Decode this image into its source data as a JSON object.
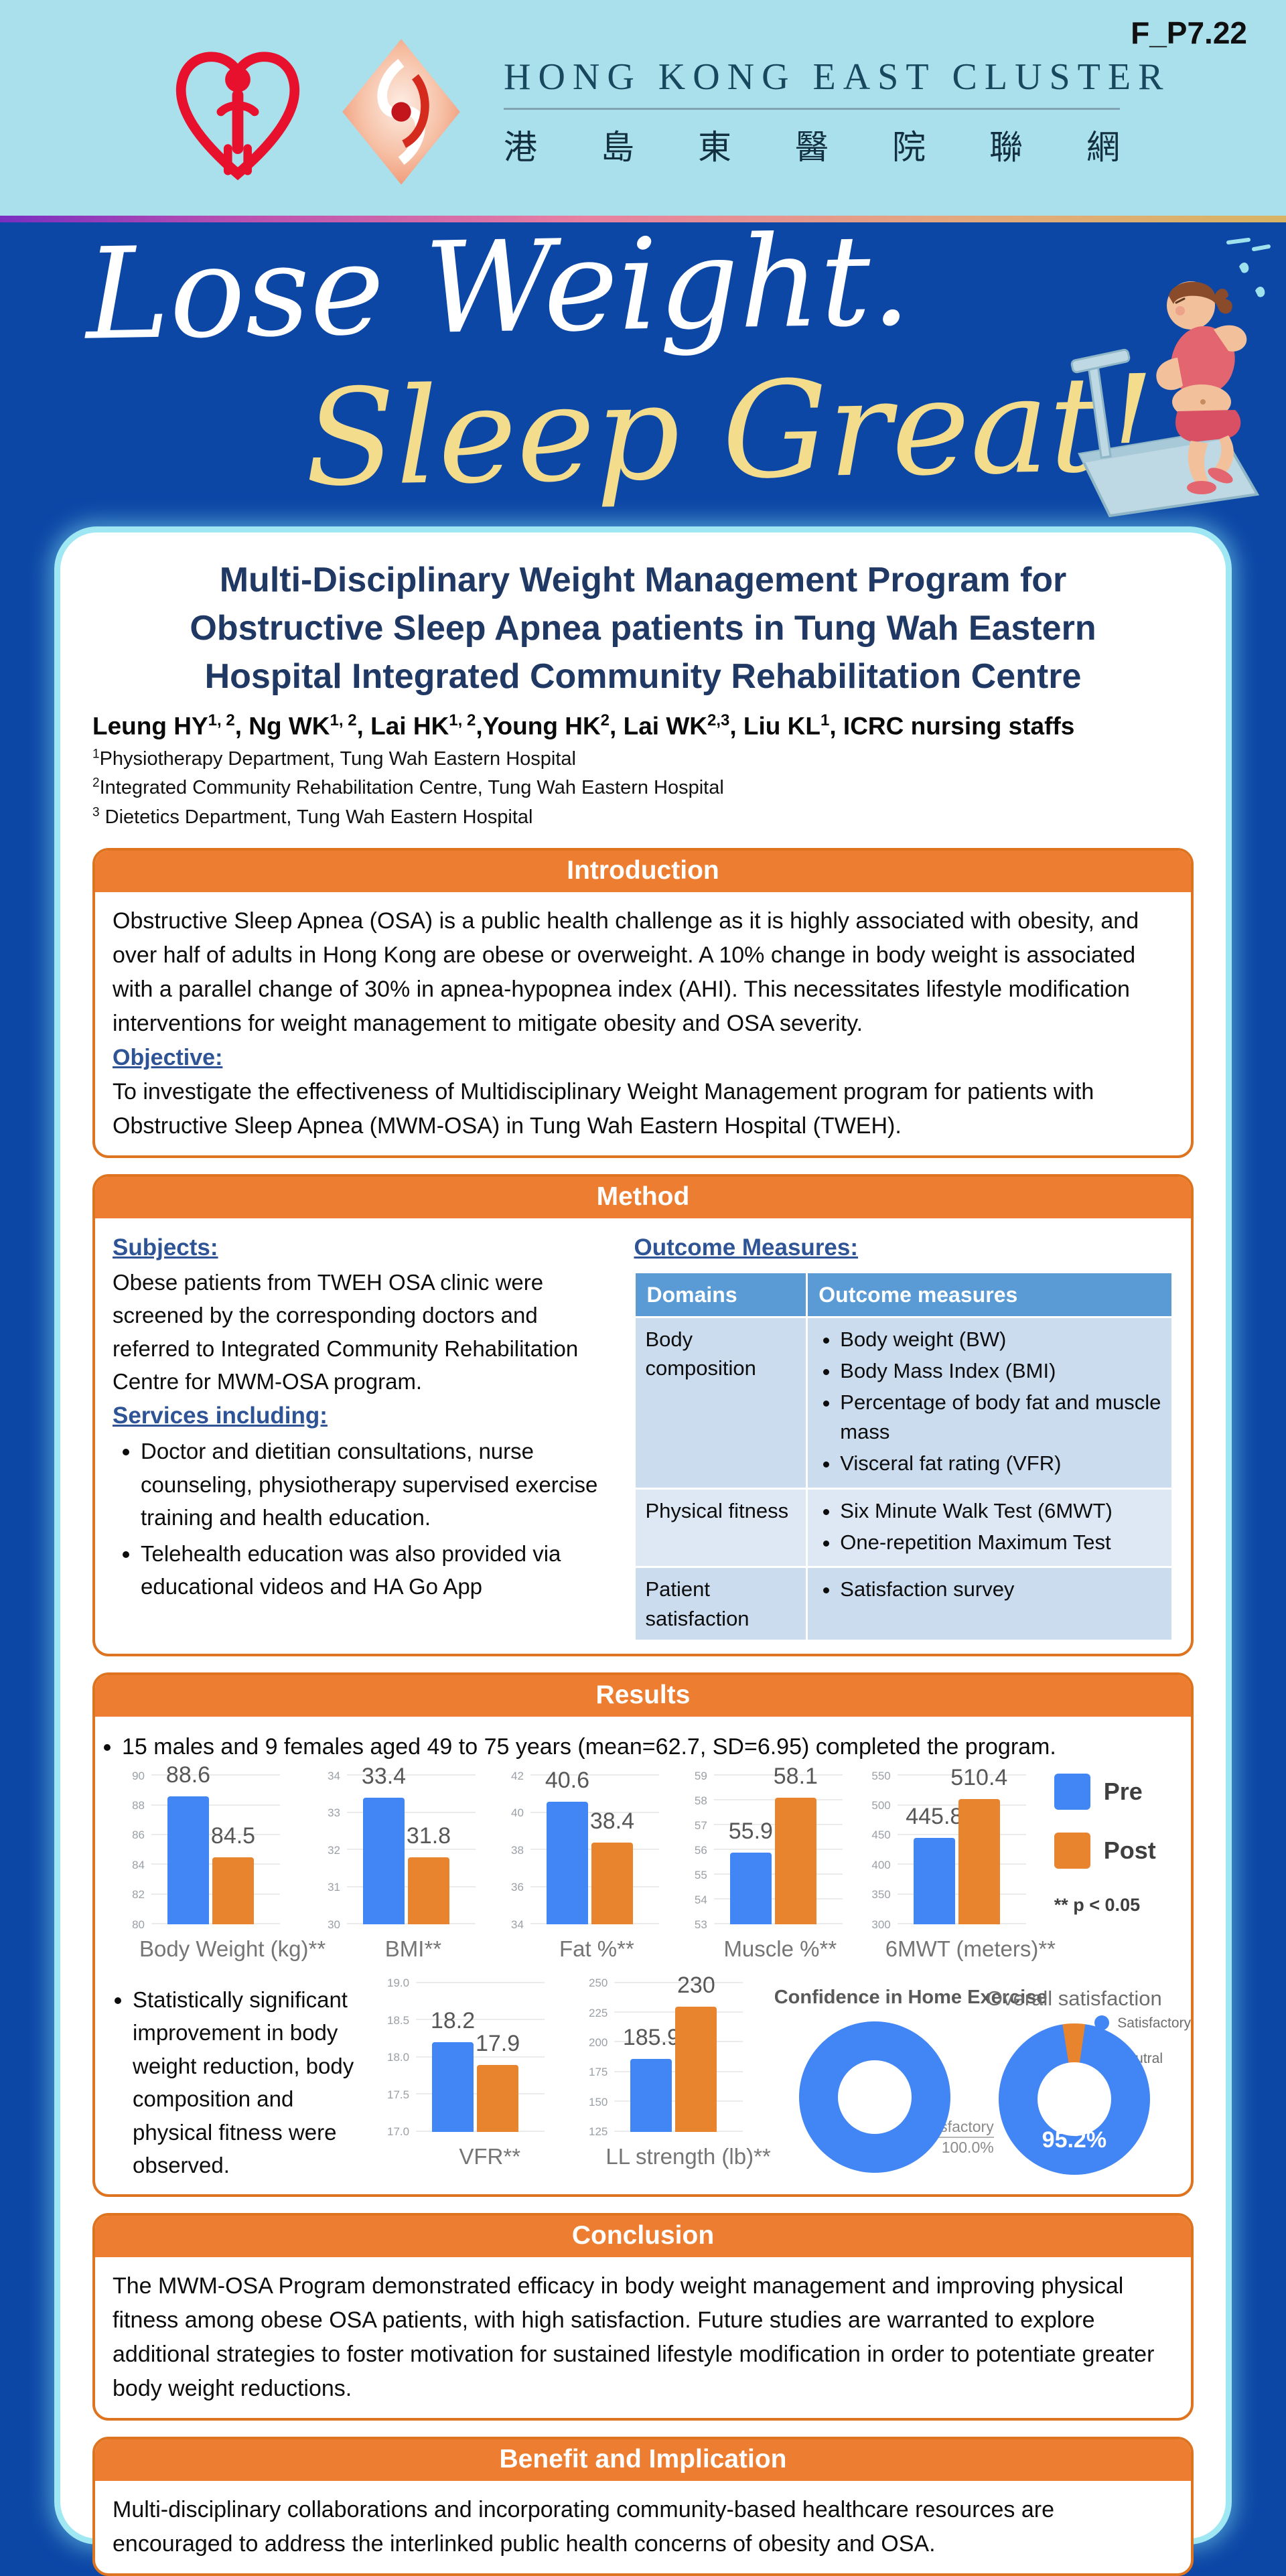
{
  "code": "F_P7.22",
  "header": {
    "org_en": "HONG KONG EAST CLUSTER",
    "org_zh": "港島東醫院聯網"
  },
  "banner": {
    "line1": "Lose Weight.",
    "line2": "Sleep Great!"
  },
  "title_lines": [
    "Multi-Disciplinary Weight Management Program for",
    "Obstructive Sleep Apnea patients in Tung Wah Eastern",
    "Hospital Integrated Community Rehabilitation Centre"
  ],
  "authors": [
    {
      "t": "Leung HY",
      "s": "1, 2"
    },
    {
      "t": ", Ng WK",
      "s": "1, 2"
    },
    {
      "t": ", Lai HK",
      "s": "1, 2"
    },
    {
      "t": ",Young HK",
      "s": "2"
    },
    {
      "t": ", Lai WK",
      "s": "2,3"
    },
    {
      "t": ", Liu KL",
      "s": "1"
    },
    {
      "t": ", ICRC nursing staffs",
      "s": ""
    }
  ],
  "affiliations": [
    {
      "s": "1",
      "t": "Physiotherapy Department, Tung Wah Eastern Hospital"
    },
    {
      "s": "2",
      "t": "Integrated Community Rehabilitation Centre, Tung Wah Eastern Hospital"
    },
    {
      "s": "3",
      "t": " Dietetics Department, Tung Wah Eastern Hospital"
    }
  ],
  "introduction": {
    "heading": "Introduction",
    "paragraph": "Obstructive Sleep Apnea (OSA) is a public health challenge as it is highly associated with obesity, and over half of adults in Hong Kong are obese or overweight. A 10% change in body weight is associated with a parallel change of 30% in apnea-hypopnea index (AHI). This necessitates lifestyle modification interventions for weight management to mitigate obesity and OSA severity.",
    "objective_label": "Objective:",
    "objective_text": "To investigate the effectiveness of Multidisciplinary Weight Management program for patients with Obstructive Sleep Apnea (MWM-OSA) in Tung Wah Eastern Hospital (TWEH)."
  },
  "method": {
    "heading": "Method",
    "subjects_label": "Subjects:",
    "subjects_text": "Obese patients from TWEH OSA clinic were screened by the corresponding doctors and referred to Integrated Community Rehabilitation Centre for MWM-OSA program.",
    "services_label": "Services including:",
    "services": [
      "Doctor and dietitian consultations, nurse counseling, physiotherapy supervised exercise training and health education.",
      "Telehealth education was also provided via educational videos and HA Go App"
    ],
    "outcome_label": "Outcome Measures:",
    "table": {
      "headers": [
        "Domains",
        "Outcome measures"
      ],
      "rows": [
        {
          "domain": "Body composition",
          "measures": [
            "Body weight (BW)",
            "Body Mass Index (BMI)",
            "Percentage of body fat and muscle mass",
            "Visceral fat rating (VFR)"
          ]
        },
        {
          "domain": "Physical fitness",
          "measures": [
            "Six Minute Walk Test (6MWT)",
            "One-repetition Maximum Test"
          ]
        },
        {
          "domain": "Patient satisfaction",
          "measures": [
            "Satisfaction survey"
          ]
        }
      ]
    }
  },
  "results": {
    "heading": "Results",
    "bullet1": "15 males and 9 females aged 49 to 75 years (mean=62.7, SD=6.95) completed the program.",
    "bullet2": "Statistically significant improvement in body weight reduction, body composition and physical fitness were observed."
  },
  "chart_data": [
    {
      "type": "bar",
      "title": "Body Weight (kg)**",
      "categories": [
        "Pre",
        "Post"
      ],
      "values": [
        88.6,
        84.5
      ],
      "ylim": [
        80,
        90
      ],
      "yticks": [
        "90",
        "88",
        "86",
        "84",
        "82",
        "80"
      ]
    },
    {
      "type": "bar",
      "title": "BMI**",
      "categories": [
        "Pre",
        "Post"
      ],
      "values": [
        33.4,
        31.8
      ],
      "ylim": [
        30,
        34
      ],
      "yticks": [
        "34",
        "33",
        "32",
        "31",
        "30"
      ]
    },
    {
      "type": "bar",
      "title": "Fat %**",
      "categories": [
        "Pre",
        "Post"
      ],
      "values": [
        40.6,
        38.4
      ],
      "ylim": [
        34,
        42
      ],
      "yticks": [
        "42",
        "40",
        "38",
        "36",
        "34"
      ]
    },
    {
      "type": "bar",
      "title": "Muscle %**",
      "categories": [
        "Pre",
        "Post"
      ],
      "values": [
        55.9,
        58.1
      ],
      "ylim": [
        53,
        59
      ],
      "yticks": [
        "59",
        "58",
        "57",
        "56",
        "55",
        "54",
        "53"
      ]
    },
    {
      "type": "bar",
      "title": "6MWT (meters)**",
      "categories": [
        "Pre",
        "Post"
      ],
      "values": [
        445.8,
        510.4
      ],
      "ylim": [
        300,
        550
      ],
      "yticks": [
        "550",
        "500",
        "450",
        "400",
        "350",
        "300"
      ]
    },
    {
      "type": "bar",
      "title": "VFR**",
      "categories": [
        "Pre",
        "Post"
      ],
      "values": [
        18.2,
        17.9
      ],
      "ylim": [
        17.0,
        19.0
      ],
      "yticks": [
        "19.0",
        "18.5",
        "18.0",
        "17.5",
        "17.0"
      ]
    },
    {
      "type": "bar",
      "title": "LL strength (lb)**",
      "categories": [
        "Pre",
        "Post"
      ],
      "values": [
        185.9,
        230
      ],
      "ylim": [
        125,
        250
      ],
      "yticks": [
        "250",
        "225",
        "200",
        "175",
        "150",
        "125"
      ]
    },
    {
      "type": "pie",
      "title": "Confidence in Home Exercise",
      "labels": [
        "Satisfactory"
      ],
      "values": [
        100.0
      ],
      "callout_line1": "Satisfactory",
      "callout_line2": "100.0%"
    },
    {
      "type": "pie",
      "title": "Overall satisfaction",
      "labels": [
        "Satisfactory",
        "Neutral"
      ],
      "values": [
        95.2,
        4.8
      ],
      "inner_label": "95.2%",
      "legend": [
        "Satisfactory",
        "Neutral"
      ],
      "legend_position": "right"
    }
  ],
  "chart_legend": {
    "pre": "Pre",
    "post": "Post",
    "note": "** p < 0.05"
  },
  "conclusion": {
    "heading": "Conclusion",
    "text": "The MWM-OSA Program demonstrated efficacy in body weight management and improving physical fitness among obese OSA patients, with high satisfaction. Future studies are warranted to explore additional strategies to foster motivation for sustained lifestyle modification in order to potentiate greater body weight reductions."
  },
  "benefit": {
    "heading": "Benefit and Implication",
    "text": "Multi-disciplinary collaborations and incorporating community-based healthcare resources are encouraged to address the interlinked public health concerns of obesity and OSA."
  },
  "colors": {
    "page_bg": "#0D47A6",
    "header_bg": "#A9E0EC",
    "accent_orange": "#ED7D31",
    "title_blue": "#1F3864",
    "label_blue": "#2F5496",
    "table_header_bg": "#5B9BD5",
    "bar_pre": "#4285F4",
    "bar_post": "#E8842D",
    "banner_line1": "#FFFFFF",
    "banner_line2": "#F3DD8D"
  }
}
